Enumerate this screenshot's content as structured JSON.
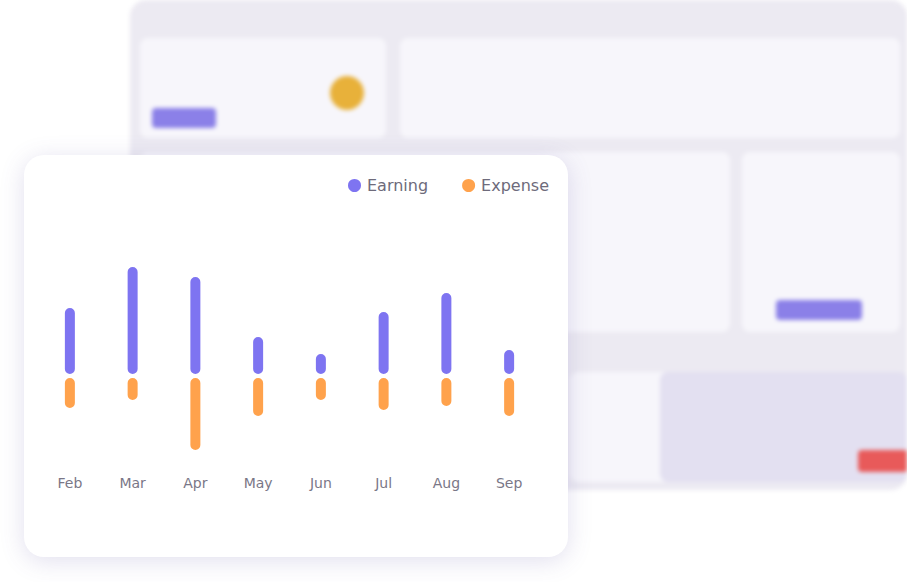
{
  "chart_data": {
    "type": "bar",
    "categories": [
      "Feb",
      "Mar",
      "Apr",
      "May",
      "Jun",
      "Jul",
      "Aug",
      "Sep"
    ],
    "series": [
      {
        "name": "Earning",
        "color": "#7e74f1",
        "values": [
          70,
          111,
          101,
          41,
          24,
          66,
          85,
          28
        ]
      },
      {
        "name": "Expense",
        "color": "#ffa24c",
        "values": [
          -34,
          -26,
          -76,
          -42,
          -26,
          -36,
          -32,
          -42
        ]
      }
    ],
    "ylim": [
      -90,
      130
    ],
    "stacked": true,
    "legend": "upper right",
    "tick_labels": "x",
    "grid": false
  }
}
